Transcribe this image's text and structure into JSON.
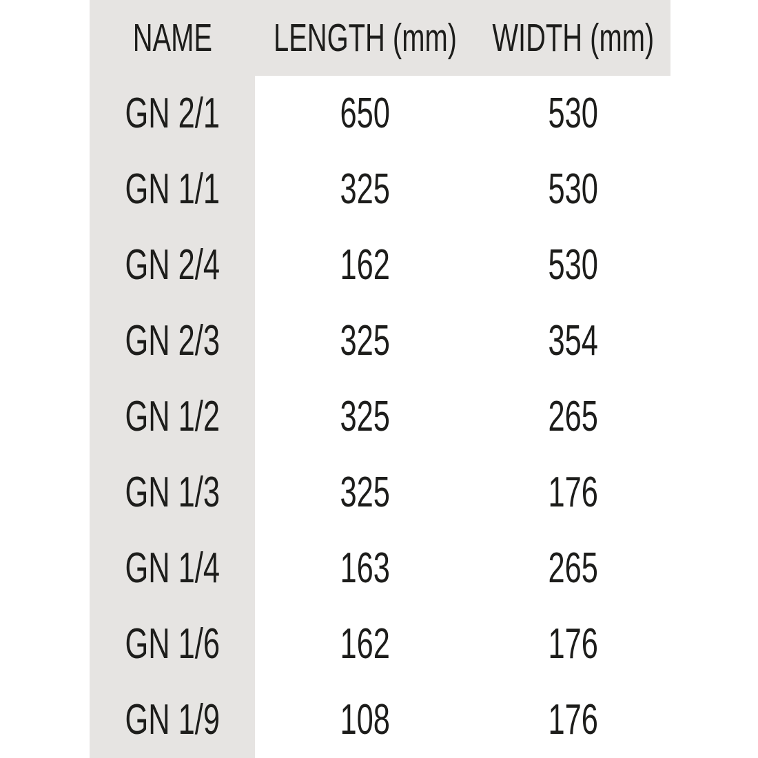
{
  "chart_data": {
    "type": "table",
    "title": "",
    "columns": [
      "NAME",
      "LENGTH (mm)",
      "WIDTH (mm)"
    ],
    "rows": [
      [
        "GN 2/1",
        "650",
        "530"
      ],
      [
        "GN 1/1",
        "325",
        "530"
      ],
      [
        "GN 2/4",
        "162",
        "530"
      ],
      [
        "GN 2/3",
        "325",
        "354"
      ],
      [
        "GN 1/2",
        "325",
        "265"
      ],
      [
        "GN 1/3",
        "325",
        "176"
      ],
      [
        "GN 1/4",
        "163",
        "265"
      ],
      [
        "GN 1/6",
        "162",
        "176"
      ],
      [
        "GN 1/9",
        "108",
        "176"
      ]
    ]
  },
  "colors": {
    "band_bg": "#e6e4e2",
    "text": "#1d1d1b",
    "page_bg": "#ffffff"
  }
}
